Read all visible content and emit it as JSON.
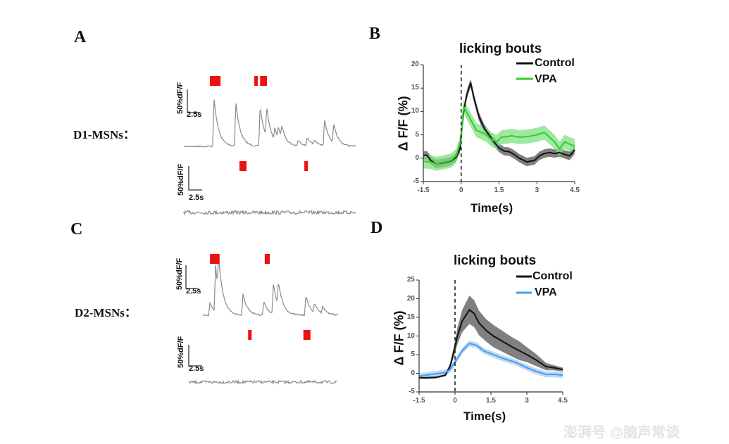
{
  "panels": {
    "A": "A",
    "B": "B",
    "C": "C",
    "D": "D"
  },
  "row_labels": {
    "d1": "D1-MSNs：",
    "d2": "D2-MSNs："
  },
  "scale_bar": {
    "amplitude": "50%dF/F",
    "time": "2.5s",
    "amplitude_pct": 50,
    "time_s": 2.5
  },
  "colors": {
    "trace": "#8a8a8a",
    "lick": "#ee1111",
    "control": "#111111",
    "vpa_d1": "#33cc33",
    "vpa_d2": "#4a9be8"
  },
  "traces": [
    {
      "name": "d1-active",
      "events": [
        [
          5.8,
          103
        ],
        [
          10.1,
          95
        ],
        [
          14.9,
          88
        ],
        [
          16.2,
          65
        ],
        [
          17.8,
          25
        ],
        [
          18.5,
          25
        ],
        [
          19.2,
          25
        ],
        [
          22.4,
          12
        ],
        [
          24.2,
          18
        ],
        [
          25.6,
          10
        ],
        [
          27.6,
          58
        ],
        [
          29.4,
          40
        ]
      ],
      "bouts": [
        [
          5.0,
          7.1
        ],
        [
          13.75,
          14.4
        ],
        [
          14.9,
          16.25
        ]
      ],
      "noise": 2
    },
    {
      "name": "d1-quiet",
      "events": [],
      "bouts": [
        [
          11.1,
          12.5
        ],
        [
          23.9,
          24.6
        ]
      ],
      "noise": 5
    },
    {
      "name": "d2-active",
      "events": [
        [
          1.4,
          27
        ],
        [
          2.5,
          100
        ],
        [
          3.1,
          70
        ],
        [
          7.9,
          45
        ],
        [
          12.0,
          30
        ],
        [
          13.9,
          65
        ],
        [
          14.9,
          50
        ],
        [
          20.3,
          42
        ],
        [
          22.0,
          20
        ],
        [
          23.6,
          15
        ]
      ],
      "bouts": [
        [
          1.4,
          3.3
        ],
        [
          12.2,
          13.2
        ]
      ],
      "noise": 2
    },
    {
      "name": "d2-quiet",
      "events": [],
      "bouts": [
        [
          11.7,
          12.4
        ],
        [
          22.6,
          24.0
        ]
      ],
      "noise": 4
    }
  ],
  "chart_data": [
    {
      "type": "line",
      "title": "licking bouts",
      "xlabel": "Time(s)",
      "ylabel": "Δ F/F (%)",
      "xlim": [
        -1.5,
        4.5
      ],
      "ylim": [
        -5,
        20
      ],
      "xticks": [
        "-1.5",
        "0",
        "1.5",
        "3",
        "4.5"
      ],
      "yticks": [
        "-5",
        "0",
        "5",
        "10",
        "15",
        "20"
      ],
      "event_line_x": 0,
      "legend": "top-right",
      "series": [
        {
          "name": "Control",
          "color": "#111111",
          "band_color": "#555555",
          "x": [
            -1.5,
            -1.35,
            -1.2,
            -1.0,
            -0.7,
            -0.4,
            -0.2,
            -0.05,
            0,
            0.1,
            0.2,
            0.3,
            0.38,
            0.5,
            0.7,
            0.9,
            1.1,
            1.3,
            1.5,
            1.7,
            1.9,
            2.1,
            2.3,
            2.6,
            2.9,
            3.1,
            3.3,
            3.5,
            3.7,
            3.9,
            4.1,
            4.3,
            4.5
          ],
          "y": [
            0.6,
            0.6,
            -0.5,
            -1.2,
            -1.0,
            -0.6,
            0.2,
            2,
            5,
            10,
            13,
            15,
            16,
            13,
            9,
            6.5,
            5,
            3.5,
            2.2,
            1.5,
            1.4,
            0.8,
            0,
            -0.8,
            -0.5,
            0.5,
            1,
            1.2,
            1.0,
            1.2,
            0.8,
            0.5,
            1.8
          ],
          "sem": 0.9
        },
        {
          "name": "VPA",
          "color": "#33cc33",
          "band_color": "#7fe07f",
          "x": [
            -1.5,
            -1.2,
            -1.0,
            -0.7,
            -0.4,
            -0.2,
            0,
            0.05,
            0.1,
            0.2,
            0.4,
            0.6,
            0.8,
            1.0,
            1.2,
            1.4,
            1.6,
            1.8,
            2.0,
            2.3,
            2.6,
            3.0,
            3.3,
            3.5,
            3.7,
            3.9,
            4.1,
            4.3,
            4.5
          ],
          "y": [
            -0.7,
            -0.8,
            -1.2,
            -0.9,
            -0.5,
            0.5,
            4,
            8,
            11,
            10,
            8,
            6,
            5.5,
            5,
            4,
            3.5,
            4.5,
            4.6,
            4.8,
            4.5,
            4.6,
            5,
            5.5,
            4.5,
            3.5,
            2.0,
            3.5,
            3,
            2.6
          ],
          "sem": 1.5
        }
      ]
    },
    {
      "type": "line",
      "title": "licking bouts",
      "xlabel": "Time(s)",
      "ylabel": "Δ F/F (%)",
      "xlim": [
        -1.5,
        4.5
      ],
      "ylim": [
        -5,
        25
      ],
      "xticks": [
        "-1.5",
        "0",
        "1.5",
        "3",
        "4.5"
      ],
      "yticks": [
        "-5",
        "0",
        "5",
        "10",
        "15",
        "20",
        "25"
      ],
      "event_line_x": 0,
      "legend": "top-right",
      "series": [
        {
          "name": "Control",
          "color": "#111111",
          "band_color": "#555555",
          "x": [
            -1.5,
            -1.2,
            -0.8,
            -0.4,
            -0.2,
            0,
            0.1,
            0.3,
            0.6,
            0.8,
            1.0,
            1.3,
            1.6,
            2.0,
            2.4,
            2.7,
            3.0,
            3.4,
            3.8,
            4.1,
            4.5
          ],
          "y": [
            -1.2,
            -1.2,
            -1.1,
            -0.5,
            2,
            7,
            10,
            14,
            17,
            16,
            13.5,
            11.5,
            10,
            8.5,
            7,
            6,
            5,
            3.5,
            1.8,
            1.5,
            1
          ],
          "sem": [
            0.3,
            0.3,
            0.3,
            0.3,
            0.8,
            1.5,
            2.2,
            3,
            3.8,
            3.6,
            3.3,
            3,
            3,
            2.8,
            2.6,
            2.5,
            2,
            1.6,
            1,
            0.7,
            0.5
          ]
        },
        {
          "name": "VPA",
          "color": "#4a9be8",
          "band_color": "#a3cdf5",
          "x": [
            -1.5,
            -1.0,
            -0.6,
            -0.4,
            -0.2,
            0,
            0.3,
            0.6,
            0.9,
            1.2,
            1.6,
            2.0,
            2.5,
            3.0,
            3.4,
            3.8,
            4.2,
            4.5
          ],
          "y": [
            -0.8,
            -0.3,
            0,
            0.2,
            1,
            3,
            6,
            8,
            7.5,
            6,
            5,
            4,
            3,
            1.5,
            0.5,
            -0.3,
            -0.3,
            -0.5
          ],
          "sem": 0.8
        }
      ]
    }
  ],
  "watermark": "澎湃号 @脑声常谈"
}
